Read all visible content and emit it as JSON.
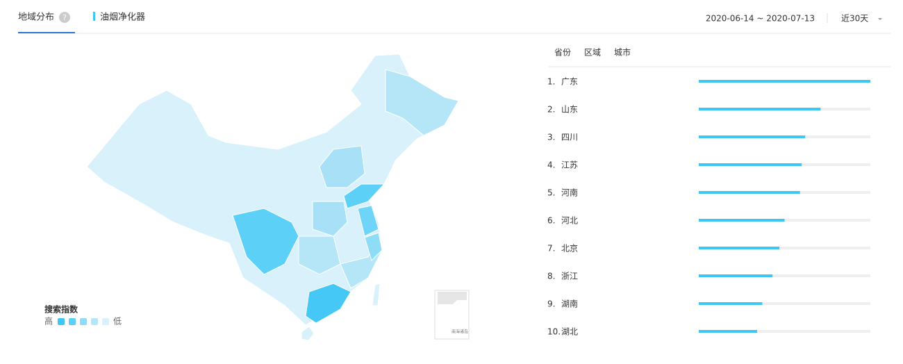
{
  "header": {
    "tabs": [
      "地域分布"
    ],
    "keyword": "油烟净化器",
    "date_range": "2020-06-14 ~ 2020-07-13",
    "period": "近30天"
  },
  "map": {
    "legend_title": "搜索指数",
    "legend_high": "高",
    "legend_low": "低",
    "inset_label": "南海诸岛"
  },
  "ranking": {
    "tabs": [
      "省份",
      "区域",
      "城市"
    ],
    "xlim": [
      0,
      100
    ],
    "items": [
      {
        "rank": "1.",
        "name": "广东",
        "value": 100
      },
      {
        "rank": "2.",
        "name": "山东",
        "value": 71
      },
      {
        "rank": "3.",
        "name": "四川",
        "value": 62
      },
      {
        "rank": "4.",
        "name": "江苏",
        "value": 60
      },
      {
        "rank": "5.",
        "name": "河南",
        "value": 59
      },
      {
        "rank": "6.",
        "name": "河北",
        "value": 50
      },
      {
        "rank": "7.",
        "name": "北京",
        "value": 47
      },
      {
        "rank": "8.",
        "name": "浙江",
        "value": 43
      },
      {
        "rank": "9.",
        "name": "湖南",
        "value": 37
      },
      {
        "rank": "10.",
        "name": "湖北",
        "value": 34
      }
    ]
  }
}
